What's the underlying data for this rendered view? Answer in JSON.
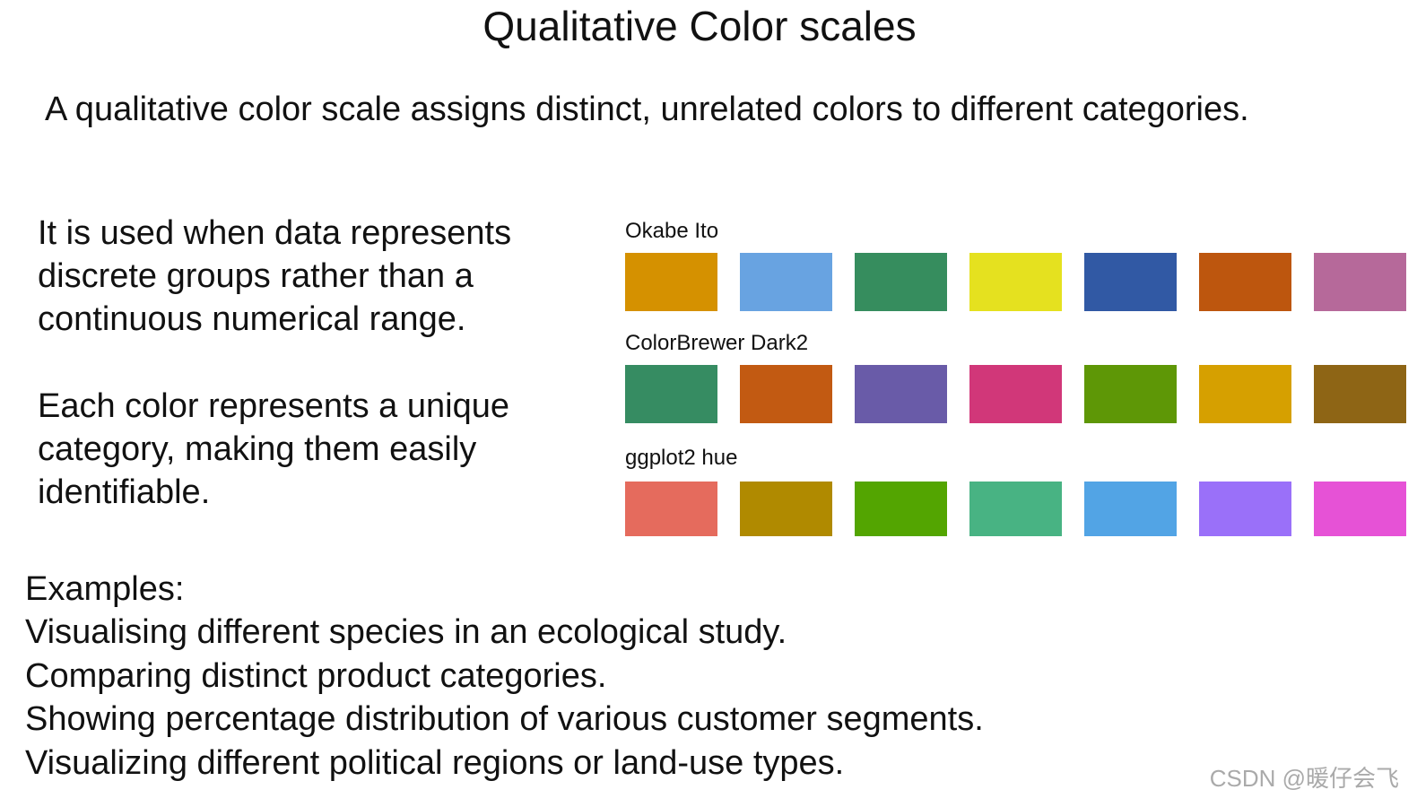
{
  "title": "Qualitative Color scales",
  "intro": "A qualitative color scale assigns distinct, unrelated colors to different categories.",
  "paragraphs": [
    [
      "It is used when data represents",
      "discrete groups rather than a",
      "continuous numerical range."
    ],
    [
      "Each color represents a unique",
      "category, making them easily",
      "identifiable."
    ]
  ],
  "palettes": [
    {
      "name": "Okabe Ito",
      "colors": [
        "#D59100",
        "#68A3E1",
        "#368D5E",
        "#E5E11F",
        "#3159A4",
        "#BD560E",
        "#B6699A"
      ]
    },
    {
      "name": "ColorBrewer Dark2",
      "colors": [
        "#368C62",
        "#C25A12",
        "#695BA8",
        "#D13779",
        "#5E9706",
        "#D6A000",
        "#8E6515"
      ]
    },
    {
      "name": "ggplot2 hue",
      "colors": [
        "#E56B5D",
        "#B08A00",
        "#53A501",
        "#48B383",
        "#52A4E5",
        "#9A70F9",
        "#E652D6"
      ]
    }
  ],
  "examples": {
    "heading": "Examples:",
    "items": [
      "Visualising different species in an ecological study.",
      "Comparing distinct product categories.",
      "Showing percentage distribution of various customer segments.",
      "Visualizing different political regions or land-use types."
    ]
  },
  "watermark": "CSDN @暖仔会飞"
}
